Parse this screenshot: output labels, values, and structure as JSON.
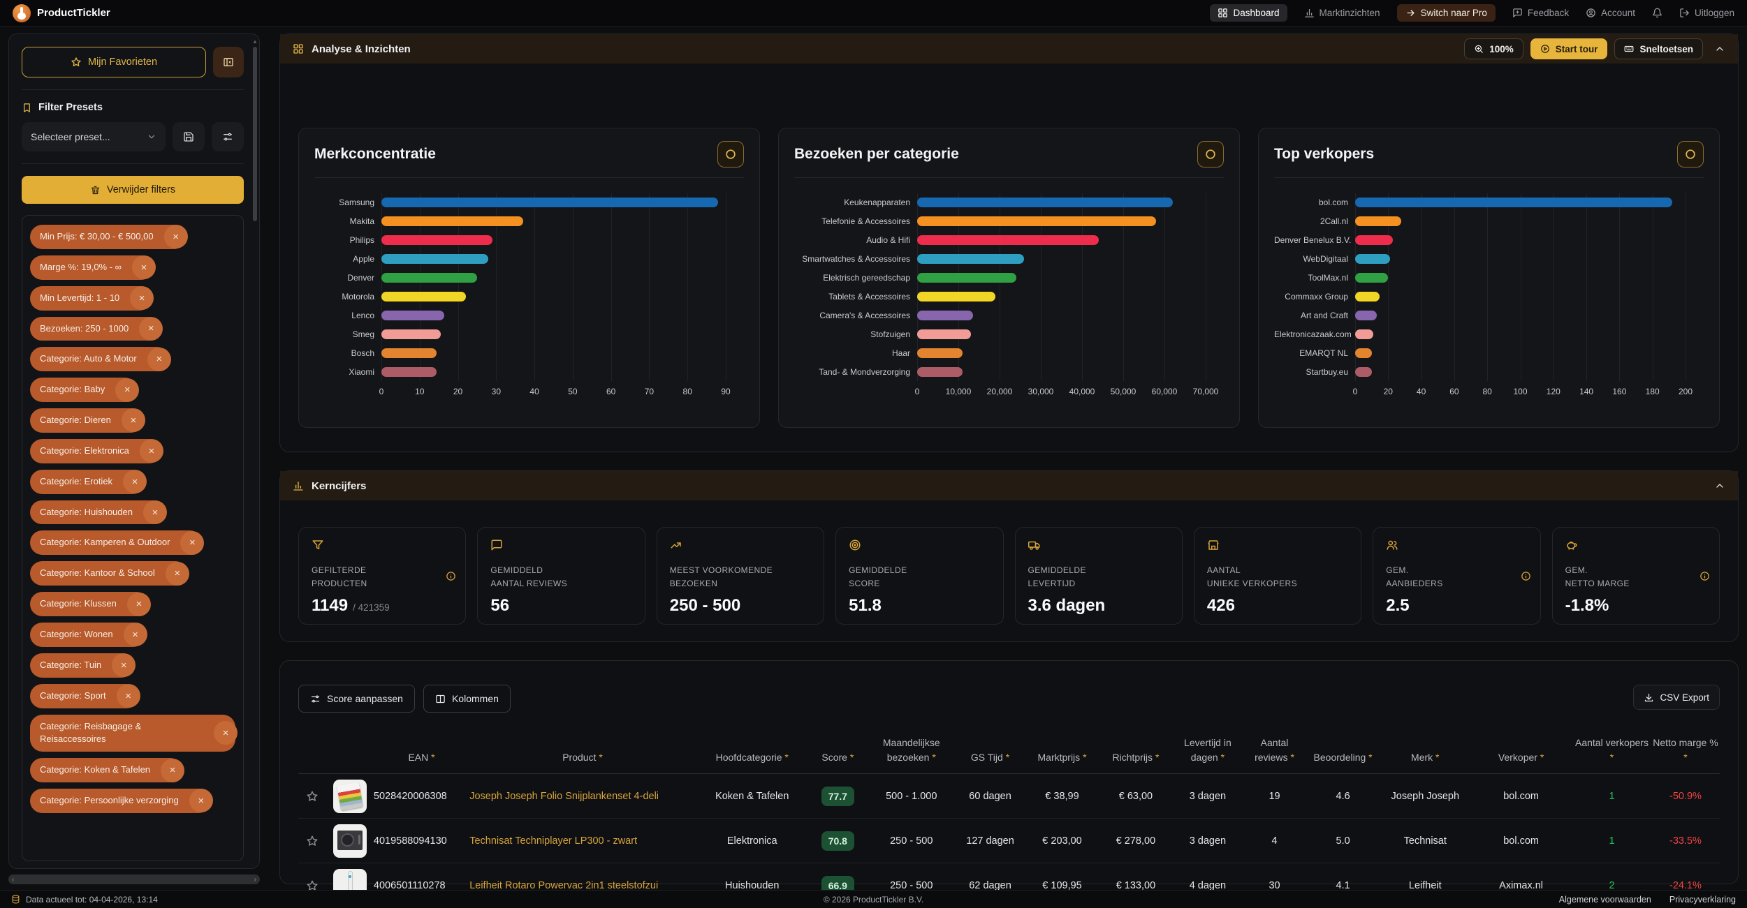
{
  "navbar": {
    "brand": "ProductTickler",
    "items": [
      {
        "label": "Dashboard",
        "icon": "grid",
        "active": true
      },
      {
        "label": "Marktinzichten",
        "icon": "bar-chart",
        "active": false
      },
      {
        "label": "Switch naar Pro",
        "icon": "arrow-right",
        "accent": true
      },
      {
        "label": "Feedback",
        "icon": "message-plus",
        "active": false
      },
      {
        "label": "Account",
        "icon": "user-circle",
        "active": false
      }
    ],
    "bell_icon": "bell",
    "logout_label": "Uitloggen",
    "logout_icon": "logout"
  },
  "sidebar": {
    "favorites_button": "Mijn Favorieten",
    "presets_title": "Filter Presets",
    "preset_select_value": "Selecteer preset...",
    "clear_filters_button": "Verwijder filters",
    "active_filters": [
      "Min Prijs: € 30,00 - € 500,00",
      "Marge %: 19,0% - ∞",
      "Min Levertijd: 1 - 10",
      "Bezoeken: 250 - 1000",
      "Categorie: Auto & Motor",
      "Categorie: Baby",
      "Categorie: Dieren",
      "Categorie: Elektronica",
      "Categorie: Erotiek",
      "Categorie: Huishouden",
      "Categorie: Kamperen & Outdoor",
      "Categorie: Kantoor & School",
      "Categorie: Klussen",
      "Categorie: Wonen",
      "Categorie: Tuin",
      "Categorie: Sport",
      "Categorie: Reisbagage & Reisaccessoires",
      "Categorie: Koken & Tafelen",
      "Categorie: Persoonlijke verzorging"
    ]
  },
  "analytics_panel": {
    "title": "Analyse & Inzichten",
    "zoom_button": "100%",
    "tour_button": "Start tour",
    "shortcuts_button": "Sneltoetsen"
  },
  "chart_data": [
    {
      "type": "bar",
      "orientation": "horizontal",
      "title": "Merkconcentratie",
      "categories": [
        "Samsung",
        "Makita",
        "Philips",
        "Apple",
        "Denver",
        "Motorola",
        "Lenco",
        "Smeg",
        "Bosch",
        "Xiaomi"
      ],
      "values": [
        88,
        37,
        29,
        28,
        25,
        22,
        16.5,
        15.5,
        14.5,
        14.5
      ],
      "xlim": [
        0,
        90
      ],
      "xticks": [
        0,
        10,
        20,
        30,
        40,
        50,
        60,
        70,
        80,
        90
      ],
      "xtick_labels": [
        "0",
        "10",
        "20",
        "30",
        "40",
        "50",
        "60",
        "70",
        "80",
        "90"
      ],
      "grid": true,
      "legend": false
    },
    {
      "type": "bar",
      "orientation": "horizontal",
      "title": "Bezoeken per categorie",
      "categories": [
        "Keukenapparaten",
        "Telefonie & Accessoires",
        "Audio & Hifi",
        "Smartwatches & Accessoires",
        "Elektrisch gereedschap",
        "Tablets & Accessoires",
        "Camera's & Accessoires",
        "Stofzuigen",
        "Haar",
        "Tand- & Mondverzorging"
      ],
      "values": [
        62000,
        58000,
        44000,
        26000,
        24000,
        19000,
        13500,
        13000,
        11000,
        11000
      ],
      "xlim": [
        0,
        70000
      ],
      "xticks": [
        0,
        10000,
        20000,
        30000,
        40000,
        50000,
        60000,
        70000
      ],
      "xtick_labels": [
        "0",
        "10,000",
        "20,000",
        "30,000",
        "40,000",
        "50,000",
        "60,000",
        "70,000"
      ],
      "grid": true,
      "legend": false
    },
    {
      "type": "bar",
      "orientation": "horizontal",
      "title": "Top verkopers",
      "categories": [
        "bol.com",
        "2Call.nl",
        "Denver Benelux B.V.",
        "WebDigitaal",
        "ToolMax.nl",
        "Commaxx Group",
        "Art and Craft",
        "Elektronicazaak.com",
        "EMARQT NL",
        "Startbuy.eu"
      ],
      "values": [
        192,
        28,
        23,
        21,
        20,
        15,
        13,
        11,
        10,
        10
      ],
      "xlim": [
        0,
        200
      ],
      "xticks": [
        0,
        20,
        40,
        60,
        80,
        100,
        120,
        140,
        160,
        180,
        200
      ],
      "xtick_labels": [
        "0",
        "20",
        "40",
        "60",
        "80",
        "100",
        "120",
        "140",
        "160",
        "180",
        "200"
      ],
      "grid": true,
      "legend": false
    }
  ],
  "kerncijfers_panel": {
    "title": "Kerncijfers",
    "cards": [
      {
        "icon": "filter",
        "label": "GEFILTERDE\nPRODUCTEN",
        "value": "1149",
        "total": "/ 421359",
        "info": true
      },
      {
        "icon": "message-square",
        "label": "GEMIDDELD\nAANTAL REVIEWS",
        "value": "56",
        "info": false
      },
      {
        "icon": "trending-up",
        "label": "MEEST VOORKOMENDE\nBEZOEKEN",
        "value": "250 - 500",
        "info": false
      },
      {
        "icon": "target",
        "label": "GEMIDDELDE\nSCORE",
        "value": "51.8",
        "info": false
      },
      {
        "icon": "truck",
        "label": "GEMIDDELDE\nLEVERTIJD",
        "value": "3.6 dagen",
        "info": false
      },
      {
        "icon": "store",
        "label": "AANTAL\nUNIEKE VERKOPERS",
        "value": "426",
        "info": false
      },
      {
        "icon": "users",
        "label": "GEM.\nAANBIEDERS",
        "value": "2.5",
        "info": true
      },
      {
        "icon": "piggy-bank",
        "label": "GEM.\nNETTO MARGE",
        "value": "-1.8%",
        "info": true
      }
    ]
  },
  "products_table": {
    "score_button": "Score aanpassen",
    "columns_button": "Kolommen",
    "csv_button": "CSV Export",
    "columns": [
      {
        "key": "ean",
        "label": "EAN",
        "required": true
      },
      {
        "key": "product",
        "label": "Product",
        "required": true
      },
      {
        "key": "category",
        "label": "Hoofdcategorie",
        "required": true
      },
      {
        "key": "score",
        "label": "Score",
        "required": true
      },
      {
        "key": "visits",
        "label": "Maandelijkse bezoeken",
        "required": true
      },
      {
        "key": "gs_time",
        "label": "GS Tijd",
        "required": true
      },
      {
        "key": "market_price",
        "label": "Marktprijs",
        "required": true
      },
      {
        "key": "target_price",
        "label": "Richtprijs",
        "required": true
      },
      {
        "key": "delivery",
        "label": "Levertijd in dagen",
        "required": true
      },
      {
        "key": "reviews",
        "label": "Aantal reviews",
        "required": true
      },
      {
        "key": "rating",
        "label": "Beoordeling",
        "required": true
      },
      {
        "key": "brand",
        "label": "Merk",
        "required": true
      },
      {
        "key": "seller",
        "label": "Verkoper",
        "required": true
      },
      {
        "key": "sellers_count",
        "label": "Aantal verkopers",
        "required": true
      },
      {
        "key": "net_margin",
        "label": "Netto marge %",
        "required": true
      }
    ],
    "rows": [
      {
        "ean": "5028420006308",
        "product": "Joseph Joseph Folio Snijplankenset 4-deli",
        "category": "Koken & Tafelen",
        "score": "77.7",
        "visits": "500 - 1.000",
        "gs_time": "60 dagen",
        "market_price": "€ 38,99",
        "target_price": "€ 63,00",
        "delivery": "3 dagen",
        "reviews": "19",
        "rating": "4.6",
        "brand": "Joseph Joseph",
        "seller": "bol.com",
        "sellers_count": "1",
        "net_margin": "-50.9%"
      },
      {
        "ean": "4019588094130",
        "product": "Technisat Techniplayer LP300 - zwart",
        "category": "Elektronica",
        "score": "70.8",
        "visits": "250 - 500",
        "gs_time": "127 dagen",
        "market_price": "€ 203,00",
        "target_price": "€ 278,00",
        "delivery": "3 dagen",
        "reviews": "4",
        "rating": "5.0",
        "brand": "Technisat",
        "seller": "bol.com",
        "sellers_count": "1",
        "net_margin": "-33.5%"
      },
      {
        "ean": "4006501110278",
        "product": "Leifheit Rotaro Powervac 2in1 steelstofzui",
        "category": "Huishouden",
        "score": "66.9",
        "visits": "250 - 500",
        "gs_time": "62 dagen",
        "market_price": "€ 109,95",
        "target_price": "€ 133,00",
        "delivery": "4 dagen",
        "reviews": "30",
        "rating": "4.1",
        "brand": "Leifheit",
        "seller": "Aximax.nl",
        "sellers_count": "2",
        "net_margin": "-24.1%"
      }
    ]
  },
  "footer": {
    "data_status": "Data actueel tot: 04-04-2026, 13:14",
    "copyright": "© 2026 ProductTickler B.V.",
    "terms_link": "Algemene voorwaarden",
    "privacy_link": "Privacyverklaring"
  },
  "colors": {
    "accent_gold": "#e7b53b",
    "filter_tag": "#b85a2b",
    "score_badge_bg": "#1d5133",
    "positive": "#22c55e",
    "negative": "#ef4444",
    "bar_palette": [
      "#1668b0",
      "#f59120",
      "#ee2c4c",
      "#2e9fc0",
      "#2fa043",
      "#f2d625",
      "#8766ae",
      "#f19c97",
      "#e5842f",
      "#ab5c66"
    ]
  }
}
